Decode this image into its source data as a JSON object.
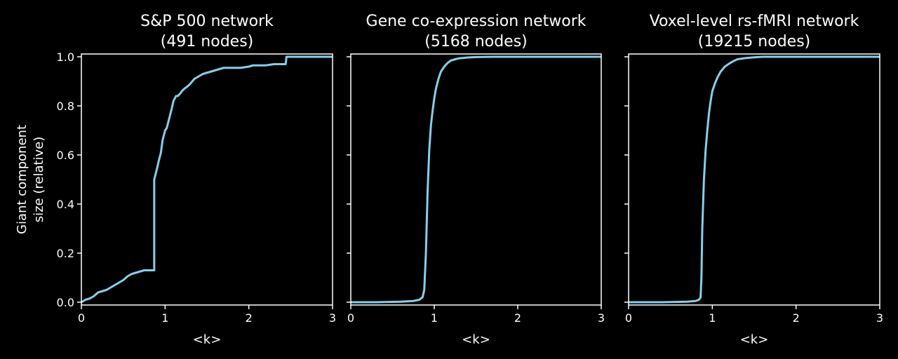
{
  "figure": {
    "ylabel_line1": "Giant component",
    "ylabel_line2": "size (relative)",
    "line_color": "#87ceeb"
  },
  "chart_data": [
    {
      "type": "line",
      "title_line1": "S&P 500 network",
      "title_line2": "(491 nodes)",
      "xlabel": "<k>",
      "xlim": [
        0,
        3
      ],
      "ylim": [
        0,
        1
      ],
      "xticks": [
        "0",
        "1",
        "2",
        "3"
      ],
      "yticks": [
        "0.0",
        "0.2",
        "0.4",
        "0.6",
        "0.8",
        "1.0"
      ],
      "series": [
        {
          "x": [
            0,
            0.05,
            0.1,
            0.15,
            0.2,
            0.25,
            0.3,
            0.35,
            0.4,
            0.45,
            0.5,
            0.55,
            0.6,
            0.65,
            0.7,
            0.75,
            0.8,
            0.85,
            0.87,
            0.87,
            0.9,
            0.92,
            0.95,
            0.97,
            1.0,
            1.02,
            1.05,
            1.08,
            1.1,
            1.13,
            1.15,
            1.18,
            1.2,
            1.23,
            1.27,
            1.3,
            1.35,
            1.4,
            1.45,
            1.5,
            1.55,
            1.6,
            1.65,
            1.7,
            1.8,
            1.9,
            2.0,
            2.05,
            2.1,
            2.2,
            2.3,
            2.44,
            2.45,
            2.6,
            2.8,
            3.0
          ],
          "y": [
            0.0,
            0.01,
            0.015,
            0.025,
            0.04,
            0.045,
            0.05,
            0.06,
            0.07,
            0.08,
            0.09,
            0.105,
            0.115,
            0.12,
            0.125,
            0.13,
            0.13,
            0.13,
            0.13,
            0.5,
            0.54,
            0.57,
            0.61,
            0.66,
            0.7,
            0.71,
            0.75,
            0.79,
            0.82,
            0.84,
            0.84,
            0.85,
            0.86,
            0.87,
            0.88,
            0.89,
            0.91,
            0.92,
            0.93,
            0.935,
            0.94,
            0.945,
            0.95,
            0.955,
            0.955,
            0.955,
            0.96,
            0.965,
            0.965,
            0.965,
            0.97,
            0.97,
            1.0,
            1.0,
            1.0,
            1.0
          ]
        }
      ]
    },
    {
      "type": "line",
      "title_line1": "Gene co-expression network",
      "title_line2": "(5168 nodes)",
      "xlabel": "<k>",
      "xlim": [
        0,
        3
      ],
      "ylim": [
        0,
        1
      ],
      "xticks": [
        "0",
        "1",
        "2",
        "3"
      ],
      "yticks": [
        "0.0",
        "0.2",
        "0.4",
        "0.6",
        "0.8",
        "1.0"
      ],
      "series": [
        {
          "x": [
            0,
            0.3,
            0.6,
            0.75,
            0.82,
            0.86,
            0.88,
            0.9,
            0.92,
            0.94,
            0.96,
            0.98,
            1.0,
            1.02,
            1.05,
            1.08,
            1.12,
            1.16,
            1.2,
            1.25,
            1.3,
            1.4,
            1.5,
            1.7,
            2.0,
            2.5,
            3.0
          ],
          "y": [
            0.0,
            0.0,
            0.002,
            0.005,
            0.01,
            0.02,
            0.05,
            0.2,
            0.45,
            0.62,
            0.72,
            0.78,
            0.83,
            0.87,
            0.91,
            0.94,
            0.96,
            0.975,
            0.985,
            0.99,
            0.994,
            0.997,
            0.999,
            1.0,
            1.0,
            1.0,
            1.0
          ]
        }
      ]
    },
    {
      "type": "line",
      "title_line1": "Voxel-level rs-fMRI network",
      "title_line2": "(19215 nodes)",
      "xlabel": "<k>",
      "xlim": [
        0,
        3
      ],
      "ylim": [
        0,
        1
      ],
      "xticks": [
        "0",
        "1",
        "2",
        "3"
      ],
      "yticks": [
        "0.0",
        "0.2",
        "0.4",
        "0.6",
        "0.8",
        "1.0"
      ],
      "series": [
        {
          "x": [
            0,
            0.4,
            0.7,
            0.8,
            0.84,
            0.86,
            0.87,
            0.88,
            0.9,
            0.92,
            0.94,
            0.96,
            0.98,
            1.0,
            1.03,
            1.06,
            1.1,
            1.15,
            1.2,
            1.25,
            1.3,
            1.4,
            1.5,
            1.6,
            2.0,
            2.5,
            3.0
          ],
          "y": [
            0.0,
            0.0,
            0.002,
            0.005,
            0.01,
            0.02,
            0.1,
            0.3,
            0.5,
            0.62,
            0.7,
            0.77,
            0.82,
            0.86,
            0.89,
            0.915,
            0.94,
            0.96,
            0.972,
            0.982,
            0.99,
            0.995,
            0.998,
            1.0,
            1.0,
            1.0,
            1.0
          ]
        }
      ]
    }
  ]
}
